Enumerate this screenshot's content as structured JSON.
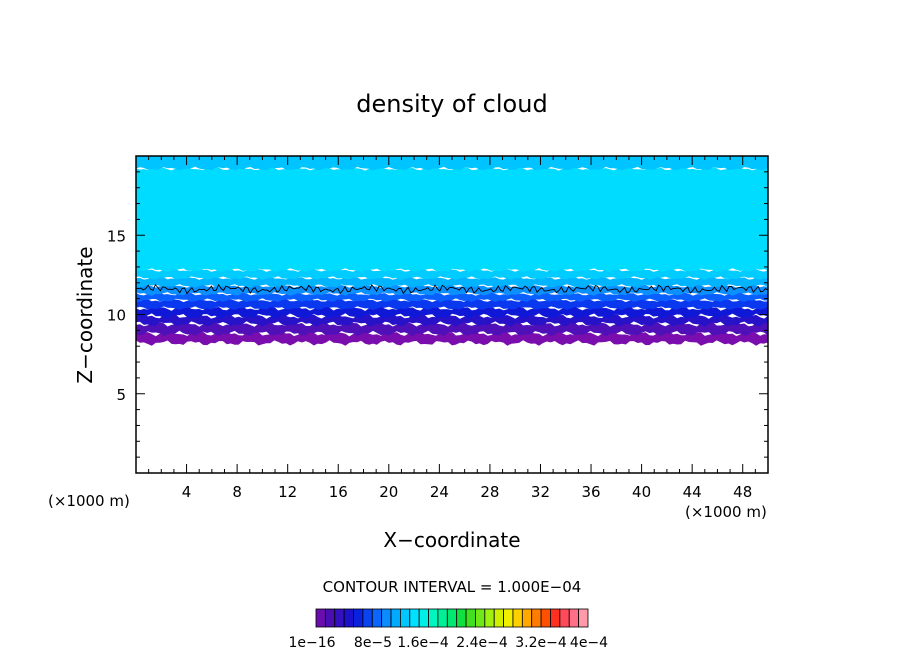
{
  "chart_data": {
    "type": "heatmap",
    "title": "density of cloud",
    "xlabel": "X−coordinate",
    "ylabel": "Z−coordinate",
    "x_unit_left": "(×1000 m)",
    "x_unit_right": "(×1000 m)",
    "xlim": [
      0,
      50
    ],
    "ylim": [
      0,
      20
    ],
    "x_ticks": [
      4,
      8,
      12,
      16,
      20,
      24,
      28,
      32,
      36,
      40,
      44,
      48
    ],
    "y_ticks": [
      5,
      10,
      15
    ],
    "contour_interval_text": "CONTOUR INTERVAL = 1.000E−04",
    "colorbar": {
      "colors": [
        "#6a0dad",
        "#4b0eb3",
        "#3310c0",
        "#1c12cc",
        "#0a22dd",
        "#0a44f0",
        "#0a66ff",
        "#0a8cff",
        "#00aaff",
        "#00c8ff",
        "#00e0ff",
        "#00f0e8",
        "#00f5c0",
        "#00f09a",
        "#00e870",
        "#10e040",
        "#40e020",
        "#70e818",
        "#a0f010",
        "#d0f000",
        "#f0f000",
        "#ffd000",
        "#ffa800",
        "#ff7c00",
        "#ff5000",
        "#ff3020",
        "#ff4a5a",
        "#ff7088",
        "#ff9aa8"
      ],
      "labels": [
        "1e−16",
        "8e−5",
        "1.6e−4",
        "2.4e−4",
        "3.2e−4",
        "4e−4"
      ]
    },
    "bands": [
      {
        "z_bottom": 8.2,
        "z_top": 8.8,
        "color": "#7a0dad"
      },
      {
        "z_bottom": 8.8,
        "z_top": 9.4,
        "color": "#5010b8"
      },
      {
        "z_bottom": 9.4,
        "z_top": 9.9,
        "color": "#2812c8"
      },
      {
        "z_bottom": 9.9,
        "z_top": 10.4,
        "color": "#1018d8"
      },
      {
        "z_bottom": 10.4,
        "z_top": 10.9,
        "color": "#0a38ee"
      },
      {
        "z_bottom": 10.9,
        "z_top": 11.3,
        "color": "#0a60ff"
      },
      {
        "z_bottom": 11.3,
        "z_top": 11.8,
        "color": "#0a90ff"
      },
      {
        "z_bottom": 11.8,
        "z_top": 12.3,
        "color": "#00b4ff"
      },
      {
        "z_bottom": 12.3,
        "z_top": 12.8,
        "color": "#00ccff"
      },
      {
        "z_bottom": 12.8,
        "z_top": 19.2,
        "color": "#00dcff"
      },
      {
        "z_bottom": 19.2,
        "z_top": 20.0,
        "color": "#00c4ff"
      }
    ],
    "contour_line": {
      "z": 11.6,
      "color": "#000000"
    },
    "grid": false
  }
}
